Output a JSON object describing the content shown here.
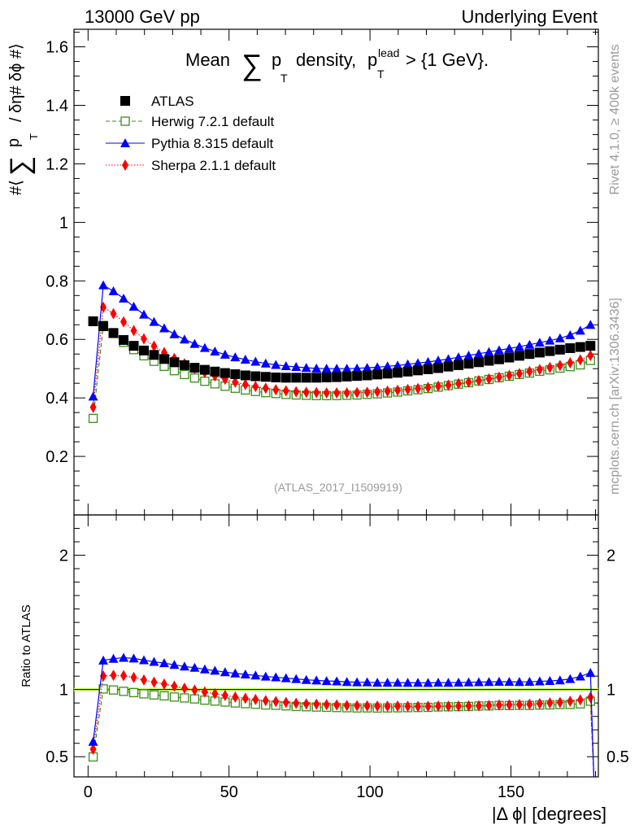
{
  "header": {
    "left": "13000 GeV pp",
    "right": "Underlying Event"
  },
  "side_labels": {
    "rivet": "Rivet 4.1.0, ≥ 400k events",
    "mcplots": "mcplots.cern.ch [arXiv:1306.3436]"
  },
  "chart_data": {
    "type": "scatter",
    "title": {
      "prefix": "Mean",
      "sum": "∑",
      "p": "p",
      "sub_T": "T",
      "middle": "density,",
      "p_lead": "p",
      "sup_lead": "lead",
      "suffix": "> {1 GeV}."
    },
    "ylabel": {
      "hash": "#⟨",
      "sum": "∑",
      "p": "p",
      "sub_T": "T",
      "rest": "/ δη# δϕ #⟩"
    },
    "xlabel": "|Δ ϕ| [degrees]",
    "ratio_ylabel": "Ratio to ATLAS",
    "analysis_id": "(ATLAS_2017_I1509919)",
    "xlim": [
      -5,
      181
    ],
    "ylim": [
      0,
      1.66
    ],
    "ratio_ylim": [
      0.35,
      2.3
    ],
    "y_ticks": [
      "0.2",
      "0.4",
      "0.6",
      "0.8",
      "1",
      "1.2",
      "1.4",
      "1.6"
    ],
    "y_tick_values": [
      0.2,
      0.4,
      0.6,
      0.8,
      1.0,
      1.2,
      1.4,
      1.6
    ],
    "ratio_ticks": [
      "0.5",
      "1",
      "2"
    ],
    "ratio_tick_values": [
      0.5,
      1.0,
      2.0
    ],
    "x_ticks": [
      "0",
      "50",
      "100",
      "150"
    ],
    "x_tick_values": [
      0,
      50,
      100,
      150
    ],
    "legend": [
      {
        "label": "ATLAS",
        "color": "#000000",
        "marker": "square"
      },
      {
        "label": "Herwig 7.2.1 default",
        "color": "#3a8f1a",
        "marker": "open-square",
        "dash": "dashed"
      },
      {
        "label": "Pythia 8.315 default",
        "color": "#0000ff",
        "marker": "triangle",
        "dash": "solid"
      },
      {
        "label": "Sherpa 2.1.1 default",
        "color": "#ff0000",
        "marker": "diamond",
        "dash": "dotted"
      }
    ],
    "colors": {
      "atlas": "#000000",
      "herwig": "#3a8f1a",
      "pythia": "#0000ff",
      "sherpa": "#ff0000",
      "band": "#ccff66"
    },
    "series": {
      "x_start": 1.8,
      "x_step": 3.6,
      "n": 50,
      "atlas": [
        0.662,
        0.645,
        0.622,
        0.598,
        0.578,
        0.562,
        0.547,
        0.533,
        0.522,
        0.512,
        0.503,
        0.496,
        0.49,
        0.485,
        0.481,
        0.477,
        0.474,
        0.472,
        0.47,
        0.469,
        0.469,
        0.469,
        0.469,
        0.47,
        0.471,
        0.473,
        0.475,
        0.477,
        0.48,
        0.483,
        0.486,
        0.49,
        0.494,
        0.498,
        0.502,
        0.507,
        0.512,
        0.517,
        0.522,
        0.527,
        0.532,
        0.538,
        0.544,
        0.55,
        0.555,
        0.56,
        0.565,
        0.57,
        0.574,
        0.578
      ],
      "herwig": [
        0.33,
        0.648,
        0.62,
        0.59,
        0.565,
        0.544,
        0.525,
        0.508,
        0.493,
        0.48,
        0.468,
        0.457,
        0.448,
        0.44,
        0.433,
        0.427,
        0.422,
        0.418,
        0.415,
        0.412,
        0.41,
        0.409,
        0.408,
        0.408,
        0.408,
        0.409,
        0.41,
        0.412,
        0.414,
        0.417,
        0.42,
        0.424,
        0.428,
        0.432,
        0.437,
        0.442,
        0.447,
        0.452,
        0.458,
        0.463,
        0.469,
        0.474,
        0.48,
        0.485,
        0.491,
        0.496,
        0.502,
        0.507,
        0.513,
        0.528
      ],
      "pythia": [
        0.405,
        0.785,
        0.765,
        0.74,
        0.712,
        0.685,
        0.66,
        0.638,
        0.618,
        0.6,
        0.585,
        0.571,
        0.559,
        0.548,
        0.539,
        0.531,
        0.524,
        0.518,
        0.513,
        0.509,
        0.506,
        0.503,
        0.501,
        0.5,
        0.5,
        0.5,
        0.501,
        0.503,
        0.505,
        0.508,
        0.511,
        0.515,
        0.519,
        0.523,
        0.528,
        0.533,
        0.539,
        0.545,
        0.551,
        0.557,
        0.563,
        0.569,
        0.575,
        0.582,
        0.589,
        0.596,
        0.604,
        0.615,
        0.63,
        0.65
      ],
      "sherpa": [
        0.368,
        0.71,
        0.688,
        0.66,
        0.63,
        0.602,
        0.577,
        0.555,
        0.535,
        0.517,
        0.501,
        0.487,
        0.475,
        0.464,
        0.454,
        0.446,
        0.439,
        0.433,
        0.428,
        0.424,
        0.421,
        0.419,
        0.418,
        0.417,
        0.417,
        0.417,
        0.418,
        0.419,
        0.421,
        0.423,
        0.426,
        0.429,
        0.432,
        0.436,
        0.44,
        0.444,
        0.449,
        0.454,
        0.459,
        0.465,
        0.471,
        0.477,
        0.483,
        0.49,
        0.497,
        0.504,
        0.511,
        0.52,
        0.53,
        0.545
      ]
    },
    "ratio_end_value": 0.3
  }
}
